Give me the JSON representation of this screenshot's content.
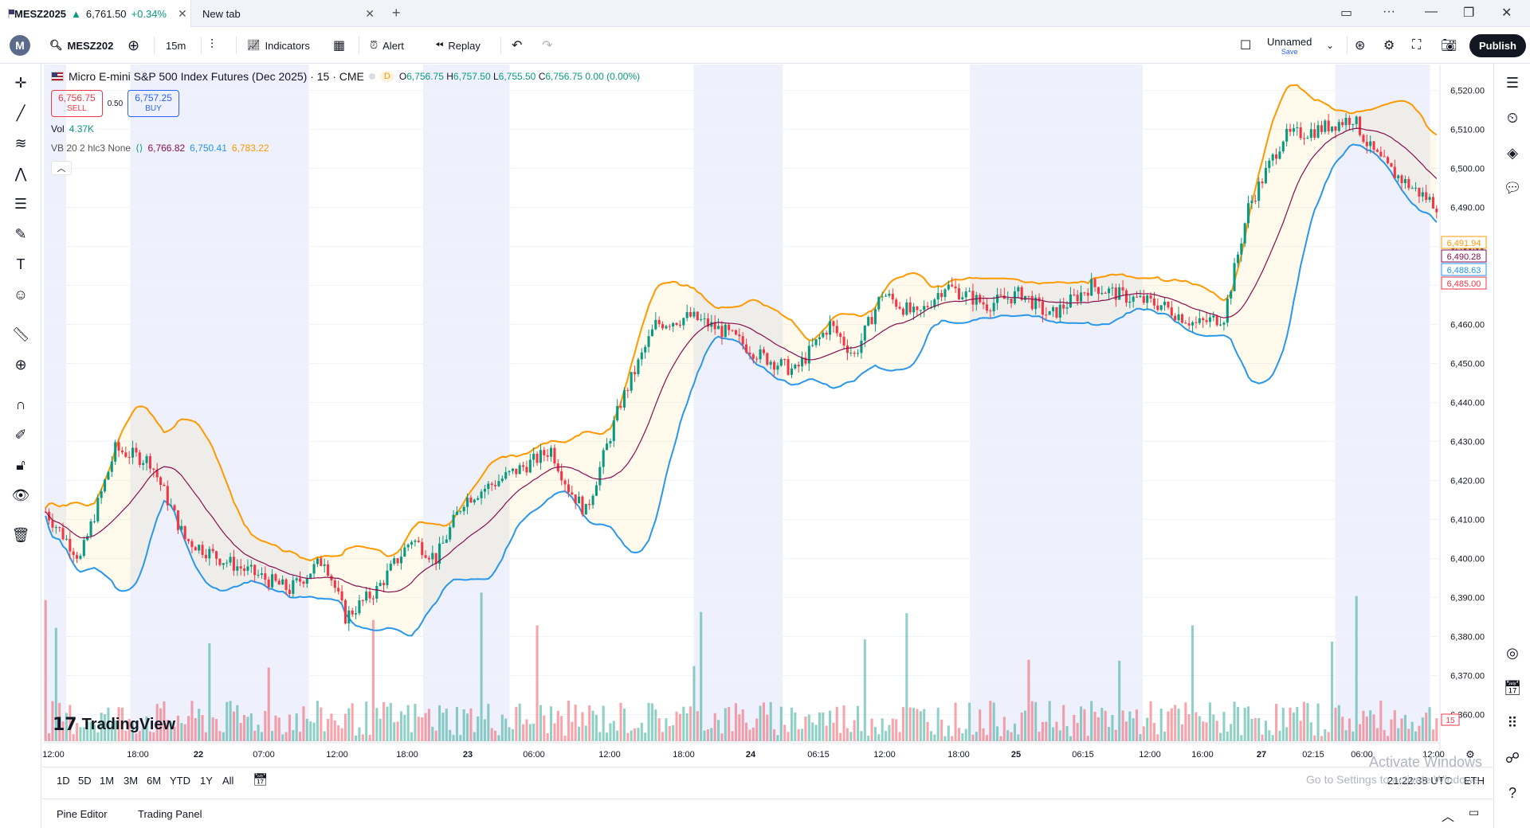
{
  "browser": {
    "tabs": [
      {
        "title": "MESZ2025",
        "price": "6,761.50",
        "change": "+0.34%"
      },
      {
        "title": "New tab"
      }
    ]
  },
  "toolbar": {
    "avatar_letter": "M",
    "symbol": "MESZ202",
    "interval": "15m",
    "indicators": "Indicators",
    "alert": "Alert",
    "replay": "Replay",
    "layout_name": "Unnamed",
    "layout_sub": "Save",
    "publish": "Publish"
  },
  "legend": {
    "title": "Micro E-mini S&P 500 Index Futures (Dec 2025) · 15 · CME",
    "badge": "D",
    "ohlc": {
      "o": "6,756.75",
      "h": "6,757.50",
      "l": "6,755.50",
      "c": "6,756.75",
      "chg": "0.00 (0.00%)"
    },
    "sell_price": "6,756.75",
    "sell_label": "SELL",
    "spread": "0.50",
    "buy_price": "6,757.25",
    "buy_label": "BUY",
    "vol_label": "Vol",
    "vol_value": "4.37K",
    "vb_label": "VB 20 2 hlc3 None",
    "vb_basis": "6,766.82",
    "vb_lower": "6,750.41",
    "vb_upper": "6,783.22"
  },
  "chart_data": {
    "type": "candlestick",
    "y_ticks": [
      "6,520.00",
      "6,510.00",
      "6,500.00",
      "6,490.00",
      "6,480.00",
      "6,470.00",
      "6,460.00",
      "6,450.00",
      "6,440.00",
      "6,430.00",
      "6,420.00",
      "6,410.00",
      "6,400.00",
      "6,390.00",
      "6,380.00",
      "6,370.00",
      "6,360.00"
    ],
    "ylim": [
      6355,
      6525
    ],
    "x_ticks": [
      "12:00",
      "18:00",
      "22",
      "07:00",
      "12:00",
      "18:00",
      "23",
      "06:00",
      "12:00",
      "18:00",
      "24",
      "06:15",
      "12:00",
      "18:00",
      "25",
      "06:15",
      "12:00",
      "16:00",
      "27",
      "02:15",
      "06:00",
      "12:00"
    ],
    "price_labels": [
      {
        "value": "6,491.94",
        "color": "#ff9800"
      },
      {
        "value": "6,490.28",
        "color": "#880e4f"
      },
      {
        "value": "6,488.63",
        "color": "#2196f3"
      },
      {
        "value": "6,485.00",
        "color": "#f23645"
      }
    ],
    "vol_badge": "15",
    "close_path": [
      [
        0,
        6412
      ],
      [
        10,
        6400
      ],
      [
        20,
        6428
      ],
      [
        30,
        6425
      ],
      [
        40,
        6405
      ],
      [
        50,
        6400
      ],
      [
        60,
        6396
      ],
      [
        70,
        6392
      ],
      [
        80,
        6400
      ],
      [
        86,
        6385
      ],
      [
        95,
        6392
      ],
      [
        105,
        6405
      ],
      [
        112,
        6400
      ],
      [
        120,
        6415
      ],
      [
        130,
        6420
      ],
      [
        140,
        6425
      ],
      [
        145,
        6428
      ],
      [
        150,
        6418
      ],
      [
        155,
        6412
      ],
      [
        165,
        6440
      ],
      [
        175,
        6460
      ],
      [
        185,
        6462
      ],
      [
        195,
        6458
      ],
      [
        205,
        6452
      ],
      [
        215,
        6448
      ],
      [
        225,
        6460
      ],
      [
        232,
        6452
      ],
      [
        240,
        6468
      ],
      [
        250,
        6462
      ],
      [
        258,
        6470
      ],
      [
        270,
        6465
      ],
      [
        280,
        6468
      ],
      [
        288,
        6462
      ],
      [
        300,
        6470
      ],
      [
        310,
        6467
      ],
      [
        320,
        6465
      ],
      [
        330,
        6460
      ],
      [
        338,
        6462
      ],
      [
        345,
        6490
      ],
      [
        355,
        6508
      ],
      [
        365,
        6510
      ],
      [
        375,
        6513
      ],
      [
        380,
        6505
      ],
      [
        385,
        6500
      ],
      [
        392,
        6495
      ],
      [
        400,
        6490
      ]
    ],
    "session_bands": [
      [
        0,
        8
      ],
      [
        31,
        95
      ],
      [
        136,
        167
      ],
      [
        233,
        265
      ],
      [
        332,
        394
      ],
      [
        463,
        497
      ]
    ]
  },
  "ranges": [
    "1D",
    "5D",
    "1M",
    "3M",
    "6M",
    "YTD",
    "1Y",
    "All"
  ],
  "clock": "21:22:38 UTC",
  "session": "ETH",
  "bottom_tabs": [
    "Pine Editor",
    "Trading Panel"
  ],
  "watermark": {
    "line1": "Activate Windows",
    "line2": "Go to Settings to activate Windows."
  },
  "brand": "TradingView",
  "colors": {
    "up": "#089981",
    "down": "#f23645",
    "upper": "#ff9800",
    "lower": "#2196f3",
    "basis": "#880e4f"
  }
}
